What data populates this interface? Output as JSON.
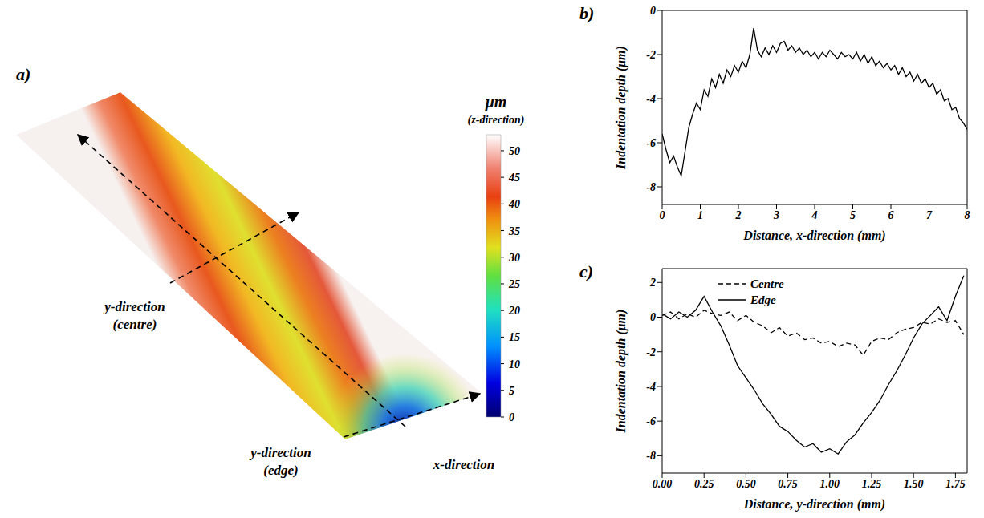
{
  "chart_data": [
    {
      "type": "surface",
      "label": "a)",
      "annotations": [
        "y-direction (centre)",
        "y-direction (edge)",
        "x-direction"
      ],
      "colorbar": {
        "title": "μm",
        "subtitle": "(z-direction)",
        "range": [
          0,
          53
        ],
        "ticks": [
          0,
          5,
          10,
          15,
          20,
          25,
          30,
          35,
          40,
          45,
          50
        ]
      }
    },
    {
      "type": "line",
      "label": "b)",
      "x_label": "Distance, x-direction (mm)",
      "y_label": "Indentation depth (μm)",
      "color": "#000000",
      "line_style": "solid",
      "grid": false,
      "xlim": [
        0,
        8
      ],
      "xticks": [
        0,
        1,
        2,
        3,
        4,
        5,
        6,
        7,
        8
      ],
      "ylim": [
        -8.8,
        0
      ],
      "yticks": [
        -8,
        -6,
        -4,
        -2,
        0
      ],
      "x": [
        0,
        0.1,
        0.2,
        0.3,
        0.4,
        0.5,
        0.6,
        0.7,
        0.8,
        0.9,
        1.0,
        1.1,
        1.2,
        1.3,
        1.4,
        1.5,
        1.6,
        1.7,
        1.8,
        1.9,
        2.0,
        2.1,
        2.2,
        2.3,
        2.4,
        2.5,
        2.6,
        2.7,
        2.8,
        2.9,
        3.0,
        3.1,
        3.2,
        3.3,
        3.4,
        3.5,
        3.6,
        3.7,
        3.8,
        3.9,
        4.0,
        4.1,
        4.2,
        4.3,
        4.4,
        4.5,
        4.6,
        4.7,
        4.8,
        4.9,
        5.0,
        5.1,
        5.2,
        5.3,
        5.4,
        5.5,
        5.6,
        5.7,
        5.8,
        5.9,
        6.0,
        6.1,
        6.2,
        6.3,
        6.4,
        6.5,
        6.6,
        6.7,
        6.8,
        6.9,
        7.0,
        7.1,
        7.2,
        7.3,
        7.4,
        7.5,
        7.6,
        7.7,
        7.8,
        7.9,
        8.0
      ],
      "values": [
        -5.6,
        -6.3,
        -6.9,
        -6.6,
        -7.1,
        -7.5,
        -6.4,
        -5.3,
        -4.7,
        -4.2,
        -4.5,
        -3.6,
        -3.9,
        -3.1,
        -3.5,
        -2.9,
        -3.3,
        -2.7,
        -3.0,
        -2.5,
        -2.8,
        -2.3,
        -2.6,
        -2.0,
        -0.8,
        -1.8,
        -2.1,
        -1.7,
        -2.0,
        -1.6,
        -1.9,
        -1.5,
        -1.4,
        -1.8,
        -1.6,
        -1.9,
        -1.7,
        -2.0,
        -1.8,
        -2.1,
        -1.9,
        -2.2,
        -1.9,
        -2.1,
        -1.8,
        -2.0,
        -2.2,
        -1.9,
        -2.1,
        -2.0,
        -2.2,
        -1.9,
        -2.3,
        -2.0,
        -2.4,
        -2.1,
        -2.5,
        -2.3,
        -2.6,
        -2.4,
        -2.7,
        -2.5,
        -2.9,
        -2.6,
        -3.0,
        -2.8,
        -3.2,
        -2.9,
        -3.3,
        -3.1,
        -3.5,
        -3.3,
        -3.8,
        -3.6,
        -4.1,
        -4.0,
        -4.5,
        -4.4,
        -4.9,
        -5.1,
        -5.4
      ]
    },
    {
      "type": "line",
      "label": "c)",
      "x_label": "Distance, y-direction (mm)",
      "y_label": "Indentation depth (μm)",
      "grid": false,
      "legend": "top",
      "xlim": [
        0,
        1.82
      ],
      "xticks": [
        {
          "value": 0,
          "label": "0.00"
        },
        0.25,
        {
          "value": 0.5,
          "label": "0.50"
        },
        0.75,
        {
          "value": 1,
          "label": "1.00"
        },
        1.25,
        {
          "value": 1.5,
          "label": "1.50"
        },
        1.75
      ],
      "ylim": [
        -9,
        2.8
      ],
      "yticks": [
        -8,
        -6,
        -4,
        -2,
        0,
        2
      ],
      "x": [
        0,
        0.05,
        0.1,
        0.15,
        0.2,
        0.25,
        0.3,
        0.35,
        0.4,
        0.45,
        0.5,
        0.55,
        0.6,
        0.65,
        0.7,
        0.75,
        0.8,
        0.85,
        0.9,
        0.95,
        1.0,
        1.05,
        1.1,
        1.15,
        1.2,
        1.25,
        1.3,
        1.35,
        1.4,
        1.45,
        1.5,
        1.55,
        1.6,
        1.65,
        1.7,
        1.75,
        1.8
      ],
      "series": [
        {
          "name": "Centre",
          "color": "#000000",
          "line_style": "dashed",
          "values": [
            0.1,
            0.3,
            -0.1,
            0.2,
            0,
            0.4,
            0.2,
            0.1,
            0.3,
            -0.2,
            0.1,
            -0.3,
            -0.5,
            -0.9,
            -0.6,
            -1.1,
            -0.9,
            -1.3,
            -1.2,
            -1.5,
            -1.4,
            -1.7,
            -1.5,
            -1.6,
            -2.2,
            -1.4,
            -1.2,
            -1.3,
            -0.9,
            -0.7,
            -0.6,
            -0.3,
            -0.4,
            -0.1,
            -0.3,
            -0.2,
            -1.0
          ]
        },
        {
          "name": "Edge",
          "color": "#000000",
          "line_style": "solid",
          "values": [
            0.2,
            -0.1,
            0.3,
            0,
            0.4,
            1.2,
            0.3,
            -0.5,
            -1.6,
            -2.8,
            -3.5,
            -4.2,
            -5.0,
            -5.6,
            -6.3,
            -6.6,
            -7.1,
            -7.5,
            -7.3,
            -7.8,
            -7.6,
            -7.9,
            -7.2,
            -6.8,
            -6.1,
            -5.5,
            -4.8,
            -3.9,
            -3.1,
            -2.2,
            -1.2,
            -0.4,
            0.1,
            0.6,
            -0.2,
            1.2,
            2.4
          ]
        }
      ]
    }
  ]
}
